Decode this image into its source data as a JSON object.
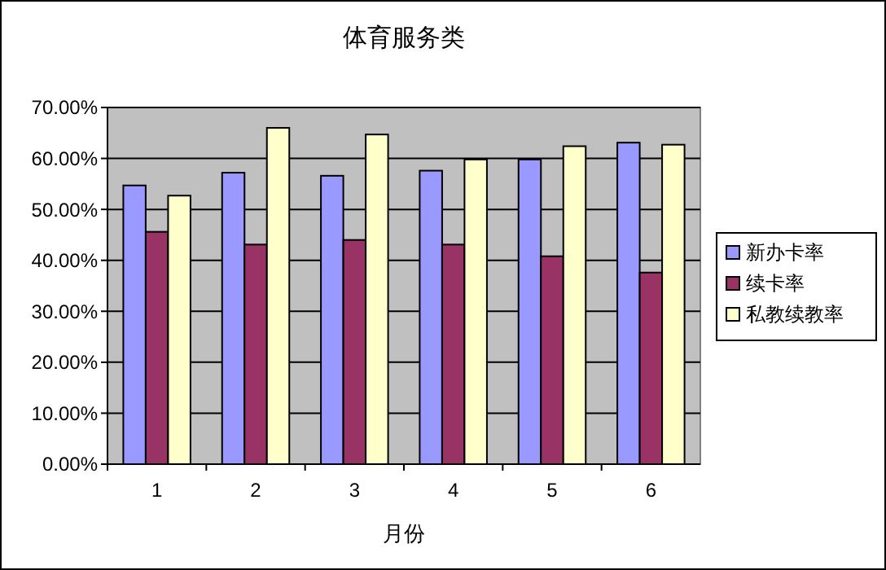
{
  "chart_data": {
    "type": "bar",
    "title": "体育服务类",
    "xlabel": "月份",
    "categories": [
      "1",
      "2",
      "3",
      "4",
      "5",
      "6"
    ],
    "series": [
      {
        "name": "新办卡率",
        "color": "#9999ff",
        "values": [
          54.7,
          57.2,
          56.6,
          57.6,
          59.8,
          63.1
        ]
      },
      {
        "name": "续卡率",
        "color": "#993366",
        "values": [
          45.6,
          43.1,
          44.0,
          43.1,
          40.8,
          37.6
        ]
      },
      {
        "name": "私教续教率",
        "color": "#ffffcc",
        "values": [
          52.7,
          66.0,
          64.7,
          59.8,
          62.4,
          62.7
        ]
      }
    ],
    "ylim": [
      0,
      70
    ],
    "yticks": [
      {
        "value": 0,
        "label": "0.00%"
      },
      {
        "value": 10,
        "label": "10.00%"
      },
      {
        "value": 20,
        "label": "20.00%"
      },
      {
        "value": 30,
        "label": "30.00%"
      },
      {
        "value": 40,
        "label": "40.00%"
      },
      {
        "value": 50,
        "label": "50.00%"
      },
      {
        "value": 60,
        "label": "60.00%"
      },
      {
        "value": 70,
        "label": "70.00%"
      }
    ],
    "grid": "y",
    "legend": "right"
  }
}
